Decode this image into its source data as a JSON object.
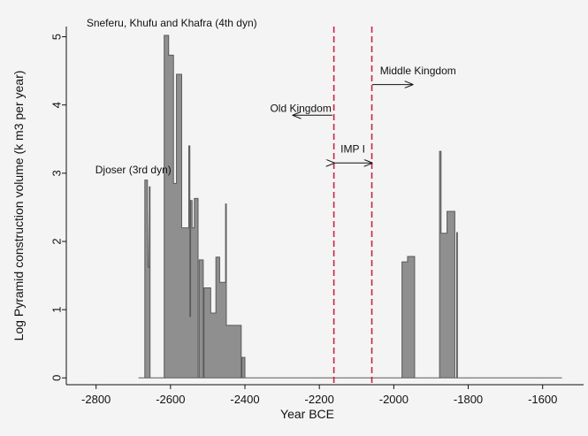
{
  "chart_data": {
    "type": "area",
    "xlabel": "Year BCE",
    "ylabel": "Log Pyramid construction volume (k m3 per year)",
    "xlim": [
      -2880,
      -1490
    ],
    "ylim": [
      -0.1,
      5.15
    ],
    "xticks": [
      -2800,
      -2600,
      -2400,
      -2200,
      -2000,
      -1800,
      -1600
    ],
    "xtick_labels": [
      "-2800",
      "-2600",
      "-2400",
      "-2200",
      "-2000",
      "-1800",
      "-1600"
    ],
    "yticks": [
      0,
      1,
      2,
      3,
      4,
      5
    ],
    "ytick_labels": [
      "0",
      "1",
      "2",
      "3",
      "4",
      "5"
    ],
    "grid": false,
    "fill_color": "#8f8f8f",
    "line_color": "#5a5a5a",
    "vline_color": "#c8244a",
    "series": [
      {
        "values_note": "step area of volume per year",
        "points": [
          [
            -2686,
            0
          ],
          [
            -2669,
            0
          ],
          [
            -2669,
            2.9
          ],
          [
            -2662,
            2.9
          ],
          [
            -2662,
            2.5
          ],
          [
            -2660,
            1.62
          ],
          [
            -2657,
            1.62
          ],
          [
            -2657,
            2.8
          ],
          [
            -2655,
            2.8
          ],
          [
            -2655,
            0
          ],
          [
            -2617,
            0
          ],
          [
            -2617,
            5.02
          ],
          [
            -2605,
            5.02
          ],
          [
            -2605,
            4.73
          ],
          [
            -2592,
            4.73
          ],
          [
            -2592,
            2.85
          ],
          [
            -2584,
            2.85
          ],
          [
            -2584,
            4.45
          ],
          [
            -2570,
            4.45
          ],
          [
            -2570,
            2.2
          ],
          [
            -2551,
            2.2
          ],
          [
            -2551,
            3.4
          ],
          [
            -2548,
            3.4
          ],
          [
            -2548,
            0.9
          ],
          [
            -2546,
            0.9
          ],
          [
            -2546,
            2.6
          ],
          [
            -2542,
            2.6
          ],
          [
            -2542,
            2.2
          ],
          [
            -2536,
            2.2
          ],
          [
            -2536,
            2.63
          ],
          [
            -2526,
            2.63
          ],
          [
            -2526,
            0
          ],
          [
            -2523,
            0
          ],
          [
            -2523,
            1.73
          ],
          [
            -2512,
            1.73
          ],
          [
            -2512,
            0
          ],
          [
            -2510,
            0
          ],
          [
            -2510,
            1.32
          ],
          [
            -2492,
            1.32
          ],
          [
            -2492,
            0.95
          ],
          [
            -2478,
            0.95
          ],
          [
            -2478,
            1.77
          ],
          [
            -2468,
            1.77
          ],
          [
            -2468,
            1.4
          ],
          [
            -2452,
            1.4
          ],
          [
            -2452,
            2.55
          ],
          [
            -2450,
            2.55
          ],
          [
            -2450,
            0.77
          ],
          [
            -2410,
            0.77
          ],
          [
            -2410,
            0
          ],
          [
            -2408,
            0
          ],
          [
            -2408,
            0.3
          ],
          [
            -2400,
            0.3
          ],
          [
            -2400,
            0
          ],
          [
            -1978,
            0
          ],
          [
            -1978,
            1.7
          ],
          [
            -1963,
            1.7
          ],
          [
            -1963,
            1.78
          ],
          [
            -1944,
            1.78
          ],
          [
            -1944,
            0
          ],
          [
            -1877,
            0
          ],
          [
            -1877,
            3.32
          ],
          [
            -1873,
            3.32
          ],
          [
            -1873,
            2.12
          ],
          [
            -1857,
            2.12
          ],
          [
            -1857,
            2.44
          ],
          [
            -1836,
            2.44
          ],
          [
            -1836,
            0
          ],
          [
            -1831,
            0
          ],
          [
            -1831,
            2.13
          ],
          [
            -1829,
            2.13
          ],
          [
            -1829,
            0
          ],
          [
            -1548,
            0
          ]
        ]
      }
    ],
    "vlines": [
      -2161,
      -2059
    ],
    "annotations": [
      {
        "text": "Sneferu, Khufu and Khafra (4th dyn)",
        "x": -2600,
        "y": 5.15
      },
      {
        "text": "Djoser (3rd dyn)",
        "x": -2700,
        "y": 3.0
      },
      {
        "text": "Old Kingdom",
        "x": -2250,
        "y": 3.9
      },
      {
        "text": "Middle Kingdom",
        "x": -1935,
        "y": 4.45
      },
      {
        "text": "IMP I",
        "x": -2110,
        "y": 3.3
      }
    ],
    "arrows": [
      {
        "from": [
          -2165,
          3.85
        ],
        "to": [
          -2270,
          3.85
        ],
        "label": "Old Kingdom"
      },
      {
        "from": [
          -2058,
          4.3
        ],
        "to": [
          -1950,
          4.3
        ],
        "label": "Middle Kingdom"
      },
      {
        "from": [
          -2161,
          3.15
        ],
        "to": [
          -2059,
          3.15
        ],
        "label": "IMP I",
        "double": true
      }
    ]
  }
}
